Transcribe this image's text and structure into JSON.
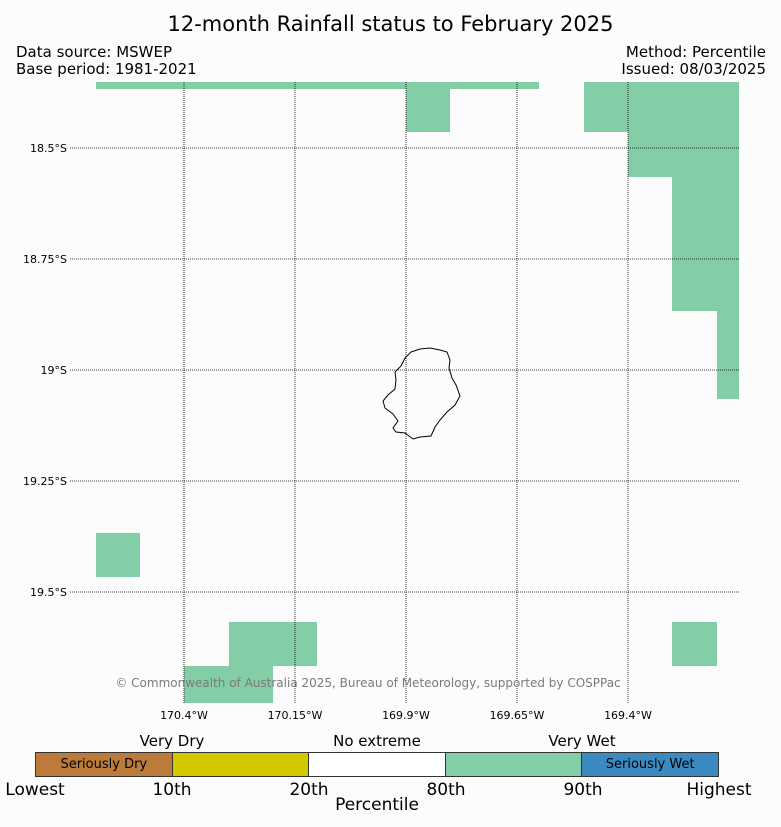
{
  "title": "12-month Rainfall status to February 2025",
  "data_source": "Data source: MSWEP",
  "base_period": "Base period: 1981-2021",
  "method": "Method: Percentile",
  "issued": "Issued: 08/03/2025",
  "copyright": "© Commonwealth of Australia 2025, Bureau of Meteorology, supported by COSPPac",
  "lat_labels": [
    "18.5°S",
    "18.75°S",
    "19°S",
    "19.25°S",
    "19.5°S"
  ],
  "lon_labels": [
    "170.4°W",
    "170.15°W",
    "169.9°W",
    "169.65°W",
    "169.4°W"
  ],
  "legend": {
    "category_labels": [
      "Very Dry",
      "No extreme",
      "Very Wet"
    ],
    "segments": [
      {
        "label": "Seriously Dry",
        "color": "#bc7b3a"
      },
      {
        "label": "",
        "color": "#d2c800"
      },
      {
        "label": "",
        "color": "#ffffff"
      },
      {
        "label": "",
        "color": "#84cea7"
      },
      {
        "label": "Seriously Wet",
        "color": "#3b8bc2"
      }
    ],
    "ticks": [
      "Lowest",
      "10th",
      "20th",
      "80th",
      "90th",
      "Highest"
    ],
    "axis_label": "Percentile"
  },
  "map_colors": {
    "very_wet": "#84cea7",
    "coast": "#000000",
    "grid": "#000000"
  }
}
